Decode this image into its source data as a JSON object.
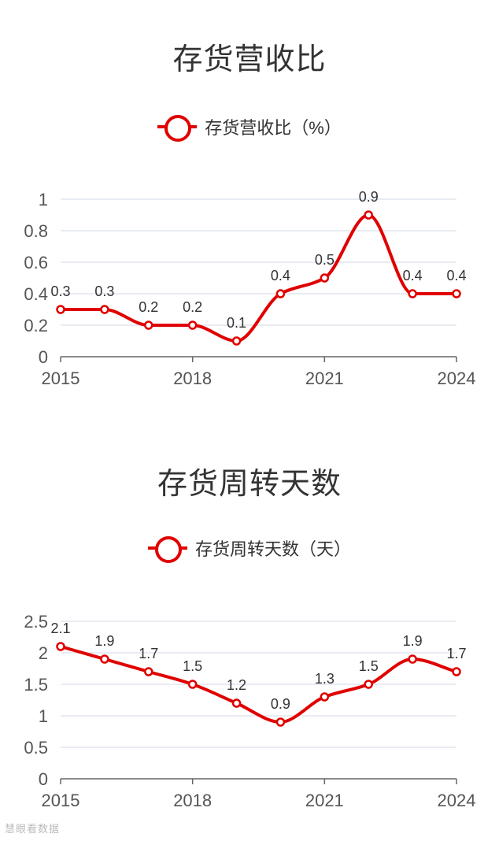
{
  "charts": {
    "inventory_ratio": {
      "title": "存货营收比",
      "legend_label": "存货营收比（%）",
      "line_color": "#e00000"
    },
    "inventory_days": {
      "title": "存货周转天数",
      "legend_label": "存货周转天数（天）",
      "line_color": "#e00000"
    }
  },
  "watermark": "慧眼看数据",
  "chart_data": [
    {
      "type": "line",
      "title": "存货营收比",
      "series": [
        {
          "name": "存货营收比（%）",
          "x": [
            2015,
            2016,
            2017,
            2018,
            2019,
            2020,
            2021,
            2022,
            2023,
            2024
          ],
          "values": [
            0.3,
            0.3,
            0.2,
            0.2,
            0.1,
            0.4,
            0.5,
            0.9,
            0.4,
            0.4
          ]
        }
      ],
      "x_tick_labels": [
        "2015",
        "2018",
        "2021",
        "2024"
      ],
      "y_tick_labels": [
        "0",
        "0.2",
        "0.4",
        "0.6",
        "0.8",
        "1"
      ],
      "ylim": [
        0,
        1
      ],
      "xlim": [
        2015,
        2024
      ],
      "grid": true,
      "legend_position": "top-center",
      "data_labels": true
    },
    {
      "type": "line",
      "title": "存货周转天数",
      "series": [
        {
          "name": "存货周转天数（天）",
          "x": [
            2015,
            2016,
            2017,
            2018,
            2019,
            2020,
            2021,
            2022,
            2023,
            2024
          ],
          "values": [
            2.1,
            1.9,
            1.7,
            1.5,
            1.2,
            0.9,
            1.3,
            1.5,
            1.9,
            1.7
          ]
        }
      ],
      "x_tick_labels": [
        "2015",
        "2018",
        "2021",
        "2024"
      ],
      "y_tick_labels": [
        "0",
        "0.5",
        "1",
        "1.5",
        "2",
        "2.5"
      ],
      "ylim": [
        0,
        2.5
      ],
      "xlim": [
        2015,
        2024
      ],
      "grid": true,
      "legend_position": "top-center",
      "data_labels": true
    }
  ]
}
